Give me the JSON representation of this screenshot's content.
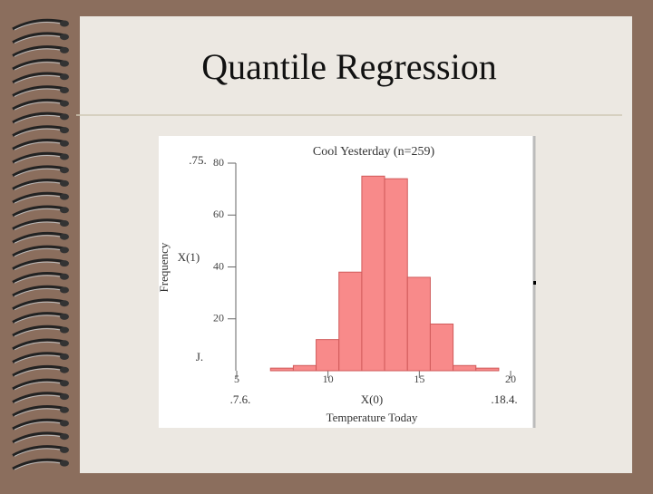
{
  "slide": {
    "title": "Quantile Regression"
  },
  "chart_data": {
    "type": "histogram",
    "title": "Cool Yesterday (n=259)",
    "x_label": "Temperature Today",
    "y_label": "Frequency",
    "bins": [
      6.85,
      8.1,
      9.35,
      10.6,
      11.85,
      13.1,
      14.35,
      15.6,
      16.85,
      18.1,
      19.35
    ],
    "values": [
      1,
      2,
      12,
      38,
      75,
      74,
      36,
      18,
      2,
      1
    ],
    "color": "#f88a8a",
    "xlim": [
      5,
      20
    ],
    "xticks": [
      5,
      10,
      15,
      20
    ],
    "ylim": [
      0,
      80
    ],
    "yticks": [
      20,
      40,
      60,
      80
    ],
    "annotations": [
      ".75.",
      "X(1)",
      "J.",
      ".7.6.",
      "X(0)",
      ".18.4."
    ]
  }
}
